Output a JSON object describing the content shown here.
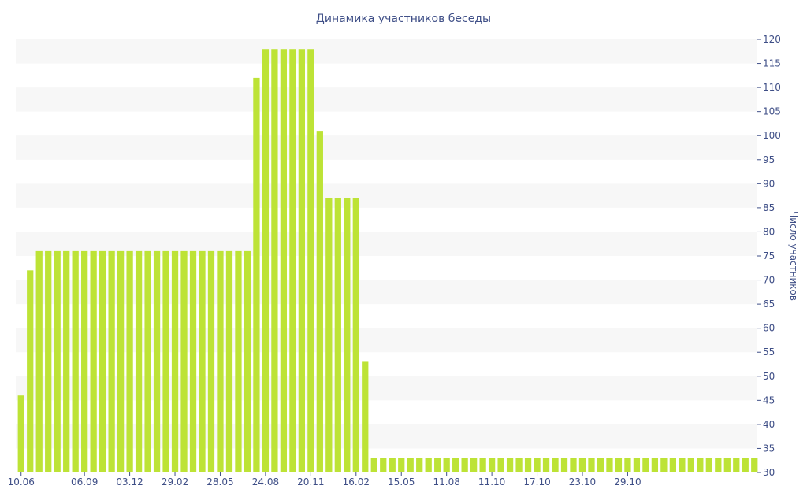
{
  "chart_data": {
    "type": "bar",
    "title": "Динамика участников беседы",
    "xlabel": "",
    "ylabel": "Число участников",
    "y_axis_side": "right",
    "ylim": [
      30,
      120
    ],
    "y_ticks": [
      30,
      35,
      40,
      45,
      50,
      55,
      60,
      65,
      70,
      75,
      80,
      85,
      90,
      95,
      100,
      105,
      110,
      115,
      120
    ],
    "x_tick_labels": [
      "10.06",
      "06.09",
      "03.12",
      "29.02",
      "28.05",
      "24.08",
      "20.11",
      "16.02",
      "15.05",
      "11.08",
      "11.10",
      "17.10",
      "23.10",
      "29.10"
    ],
    "x_tick_label_bar_index": [
      0,
      7,
      12,
      17,
      22,
      27,
      32,
      37,
      42,
      47,
      52,
      57,
      62,
      67
    ],
    "grid": "horizontal bands",
    "bar_color": "#bde336",
    "band_color": "#f7f7f7",
    "text_color": "#3f4f87",
    "values": [
      46,
      72,
      76,
      76,
      76,
      76,
      76,
      76,
      76,
      76,
      76,
      76,
      76,
      76,
      76,
      76,
      76,
      76,
      76,
      76,
      76,
      76,
      76,
      76,
      76,
      76,
      112,
      118,
      118,
      118,
      118,
      118,
      118,
      101,
      87,
      87,
      87,
      87,
      53,
      33,
      33,
      33,
      33,
      33,
      33,
      33,
      33,
      33,
      33,
      33,
      33,
      33,
      33,
      33,
      33,
      33,
      33,
      33,
      33,
      33,
      33,
      33,
      33,
      33,
      33,
      33,
      33,
      33,
      33,
      33,
      33,
      33,
      33,
      33,
      33,
      33,
      33,
      33,
      33,
      33,
      33,
      33
    ]
  }
}
